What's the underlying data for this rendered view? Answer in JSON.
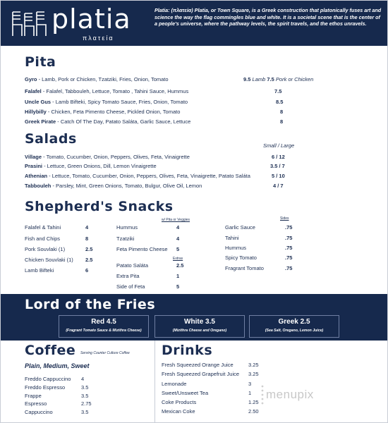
{
  "header": {
    "logo_word": "platia",
    "logo_sub": "πλατεία",
    "tagline": "Platia: (πλατεία) Platia, or Town Square, is a Greek construction that platonically fuses art and science the way the flag commingles blue and white.  It is a societal scene that is the center of a people's universe, where the pathway levels, the spirit travels, and the ethos unravels."
  },
  "pita": {
    "title": "Pita",
    "items": [
      {
        "name": "Gyro",
        "desc": " - Lamb, Pork or Chicken, Tzatziki, Fries, Onion, Tomato",
        "price": "9.5",
        "price_note": " Lamb ",
        "price2": "7.5",
        "price2_note": " Pork or Chicken"
      },
      {
        "name": "Falafel",
        "desc": " - Falafel, Tabbouleh, Lettuce, Tomato , Tahini Sauce, Hummus",
        "price": "7.5"
      },
      {
        "name": "Uncle Gus",
        "desc": " - Lamb Bifteki, Spicy Tomato Sauce, Fries, Onion, Tomato",
        "price": "8.5"
      },
      {
        "name": "Hillybilly",
        "desc": " - Chicken, Feta Pimento Cheese, Pickled Onion, Tomato",
        "price": "8"
      },
      {
        "name": "Greek Pirate",
        "desc": " - Catch Of The Day, Patato Saláta, Garlic Sauce, Lettuce",
        "price": "8"
      }
    ]
  },
  "salads": {
    "title": "Salads",
    "size_label": "Small / Large",
    "items": [
      {
        "name": "Village",
        "desc": " - Tomato, Cucumber, Onion, Peppers, Olives, Feta, Vinaigrette",
        "price": "6 / 12"
      },
      {
        "name": "Prasini",
        "desc": " - Lettuce, Green Onions, Dill, Lemon Vinaigrette",
        "price": "3.5 / 7"
      },
      {
        "name": "Athenian",
        "desc": " - Lettuce, Tomato, Cucumber, Onion, Peppers, Olives, Feta, Vinaigrette, Patato Saláta",
        "price": "5 / 10"
      },
      {
        "name": "Tabbouleh",
        "desc": " - Parsley, Mint, Green Onions, Tomato, Bulgur, Olive Oil, Lemon",
        "price": "4 / 7"
      }
    ]
  },
  "snacks": {
    "title": "Shepherd's Snacks",
    "note_pita": "w/ Pita or Veggies",
    "note_extras": "Extras",
    "note_sides": "Sides",
    "col1": [
      {
        "name": "Falafel & Tahini",
        "price": "4"
      },
      {
        "name": "Fish and Chips",
        "price": "8"
      },
      {
        "name": "Pork Souvlaki (1)",
        "price": "2.5"
      },
      {
        "name": "Chicken Souvlaki (1)",
        "price": "2.5"
      },
      {
        "name": "Lamb Bifteki",
        "price": "6"
      }
    ],
    "col2": [
      {
        "name": "Hummus",
        "price": "4"
      },
      {
        "name": "Tzatziki",
        "price": "4"
      },
      {
        "name": "Feta Pimento Cheese",
        "price": "5"
      }
    ],
    "col2_extras": [
      {
        "name": "Patato Saláta",
        "price": "2.5"
      },
      {
        "name": "Extra Pita",
        "price": "1"
      },
      {
        "name": "Side of Feta",
        "price": "5"
      }
    ],
    "col3": [
      {
        "name": "Garlic Sauce",
        "price": ".75"
      },
      {
        "name": "Tahini",
        "price": ".75"
      },
      {
        "name": "Hummus",
        "price": ".75"
      },
      {
        "name": "Spicy Tomato",
        "price": ".75"
      },
      {
        "name": "Fragrant Tomato",
        "price": ".75"
      }
    ]
  },
  "fries": {
    "title": "Lord of the Fries",
    "items": [
      {
        "name": "Red  4.5",
        "desc": "(Fragrant Tomato Sauce & Mizithra Cheese)"
      },
      {
        "name": "White  3.5",
        "desc": "(Mizithra Cheese and Oregano)"
      },
      {
        "name": "Greek  2.5",
        "desc": "(Sea Salt, Oregano, Lemon Juice)"
      }
    ]
  },
  "coffee": {
    "title": "Coffee",
    "serving_note": "Serving Counter Culture Coffee",
    "subtitle": "Plain, Medium, Sweet",
    "items": [
      {
        "name": "Freddo Cappuccino",
        "price": "4"
      },
      {
        "name": "Freddo Espresso",
        "price": "3.5"
      },
      {
        "name": "Frappe",
        "price": "3.5"
      },
      {
        "name": "Espresso",
        "price": "2.75"
      },
      {
        "name": "Cappuccino",
        "price": "3.5"
      }
    ]
  },
  "drinks": {
    "title": "Drinks",
    "items": [
      {
        "name": "Fresh Squeezed Orange Juice",
        "price": "3.25"
      },
      {
        "name": "Fresh Squeezed Grapefruit Juice",
        "price": "3.25"
      },
      {
        "name": "Lemonade",
        "price": "3"
      },
      {
        "name": "Sweet/Unsweet Tea",
        "price": "1"
      },
      {
        "name": "Coke Products",
        "price": "1.25"
      },
      {
        "name": "Mexican Coke",
        "price": "2.50"
      }
    ]
  },
  "watermark": "menupix",
  "colors": {
    "navy": "#16294d",
    "text": "#1c2e52"
  }
}
